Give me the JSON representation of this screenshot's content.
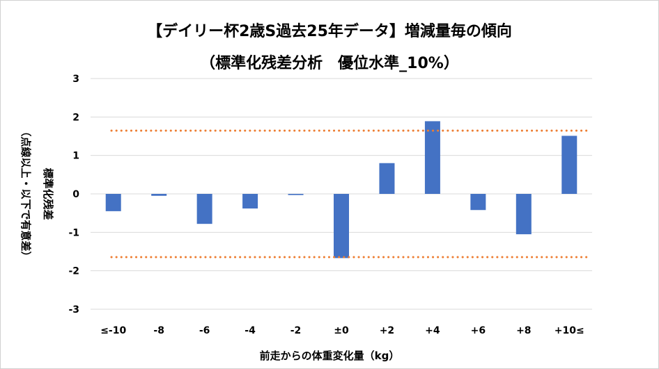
{
  "chart_data": {
    "type": "bar",
    "title": "【デイリー杯2歳S過去25年データ】増減量毎の傾向",
    "subtitle": "（標準化残差分析　優位水準_10%）",
    "xlabel": "前走からの体重変化量（kg）",
    "ylabel": "標準化残差",
    "ylabel_note": "（点線以上・以下で有意差）",
    "categories": [
      "≤-10",
      "-8",
      "-6",
      "-4",
      "-2",
      "±0",
      "+2",
      "+4",
      "+6",
      "+8",
      "+10≤"
    ],
    "values": [
      -0.45,
      -0.05,
      -0.78,
      -0.38,
      -0.03,
      -1.67,
      0.8,
      1.89,
      -0.42,
      -1.05,
      1.51
    ],
    "ylim": [
      -3,
      3
    ],
    "yticks": [
      3,
      2,
      1,
      0,
      -1,
      -2,
      -3
    ],
    "threshold_lines": [
      1.645,
      -1.645
    ],
    "grid": true,
    "colors": {
      "bar": "#4472C4",
      "threshold": "#ED7D31",
      "grid": "#D9D9D9"
    }
  }
}
